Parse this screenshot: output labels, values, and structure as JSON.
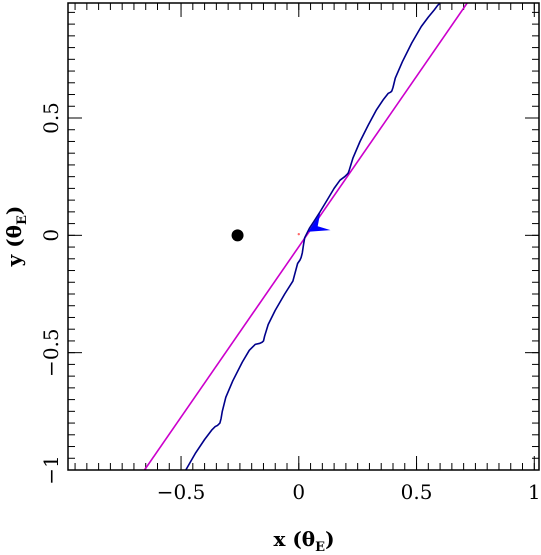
{
  "chart_data": {
    "type": "line",
    "title": "",
    "xlabel": "x (θE)",
    "ylabel": "y (θE)",
    "xlabel_parts": {
      "main": "x (θ",
      "sub": "E",
      "close": ")"
    },
    "ylabel_parts": {
      "main": "y (θ",
      "sub": "E",
      "close": ")"
    },
    "xlim": [
      -0.98,
      1.02
    ],
    "ylim": [
      -1.0,
      0.99
    ],
    "grid": false,
    "x_ticks": [
      {
        "value": -0.5,
        "label": "−0.5"
      },
      {
        "value": 0,
        "label": "0"
      },
      {
        "value": 0.5,
        "label": "0.5"
      },
      {
        "value": 1,
        "label": "1"
      }
    ],
    "y_ticks": [
      {
        "value": -1,
        "label": "−1"
      },
      {
        "value": -0.5,
        "label": "−0.5"
      },
      {
        "value": 0,
        "label": "0"
      },
      {
        "value": 0.5,
        "label": "0.5"
      }
    ],
    "series": [
      {
        "color": "#cc00cc",
        "style": "straight-line",
        "x": [
          -0.655,
          0.715
        ],
        "y": [
          -1.0,
          0.99
        ]
      },
      {
        "color": "#00008b",
        "style": "wiggly-curve",
        "x": [
          -0.48,
          -0.44,
          -0.4,
          -0.37,
          -0.355,
          -0.345,
          -0.335,
          -0.33,
          -0.325,
          -0.31,
          -0.28,
          -0.24,
          -0.21,
          -0.185,
          -0.165,
          -0.155,
          -0.15,
          -0.145,
          -0.13,
          -0.1,
          -0.06,
          -0.025,
          -0.005,
          0.005,
          0.01,
          0.015,
          0.02,
          0.025,
          0.045,
          0.065,
          0.09,
          0.12,
          0.15,
          0.175,
          0.195,
          0.205,
          0.21,
          0.215,
          0.23,
          0.26,
          0.295,
          0.33,
          0.36,
          0.38,
          0.39,
          0.395,
          0.4,
          0.41,
          0.44,
          0.48,
          0.52,
          0.55,
          0.575,
          0.59,
          0.595,
          0.6
        ],
        "y": [
          -1.0,
          -0.93,
          -0.87,
          -0.83,
          -0.815,
          -0.81,
          -0.8,
          -0.78,
          -0.75,
          -0.69,
          -0.62,
          -0.54,
          -0.49,
          -0.465,
          -0.46,
          -0.455,
          -0.45,
          -0.43,
          -0.38,
          -0.32,
          -0.25,
          -0.195,
          -0.12,
          -0.105,
          -0.095,
          -0.075,
          -0.04,
          -0.01,
          0.03,
          0.06,
          0.1,
          0.15,
          0.2,
          0.235,
          0.25,
          0.26,
          0.265,
          0.28,
          0.33,
          0.4,
          0.47,
          0.535,
          0.58,
          0.605,
          0.61,
          0.615,
          0.63,
          0.67,
          0.74,
          0.82,
          0.89,
          0.93,
          0.96,
          0.98,
          0.985,
          0.99
        ]
      }
    ],
    "markers": [
      {
        "name": "lens-point",
        "x": -0.26,
        "y": 0.0,
        "color": "#000000",
        "shape": "filled-circle"
      },
      {
        "name": "origin-dot",
        "x": 0.0,
        "y": 0.005,
        "color": "#ff6666",
        "shape": "small-dot"
      }
    ],
    "arrow": {
      "color": "#0000ff",
      "tip": [
        0.04,
        0.015
      ],
      "direction": "down-left",
      "from": [
        0.09,
        0.045
      ]
    }
  }
}
